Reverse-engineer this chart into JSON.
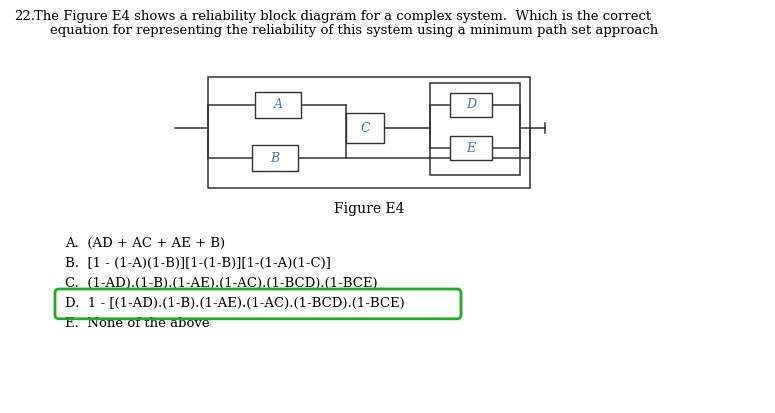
{
  "bg_color": "#ffffff",
  "text_color": "#000000",
  "block_color": "#4472C4",
  "line_color": "#333333",
  "highlight_color": "#22aa22",
  "figure_label": "Figure E4",
  "options": [
    "A.  (AD + AC + AE + B)",
    "B.  [1 - (1-A)(1-B)][1-(1-B)][1-(1-A)(1-C)]",
    "C.  (1-AD).(1-B).(1-AE).(1-AC).(1-BCD).(1-BCE)",
    "D.  1 - [(1-AD).(1-B).(1-AE).(1-AC).(1-BCD).(1-BCE)",
    "E.  None of the above"
  ],
  "highlighted_option_index": 3,
  "q_number": "22.",
  "q_line1": "The Figure E4 shows a reliability block diagram for a complex system.  Which is the correct",
  "q_line2": "equation for representing the reliability of this system using a minimum path set approach"
}
